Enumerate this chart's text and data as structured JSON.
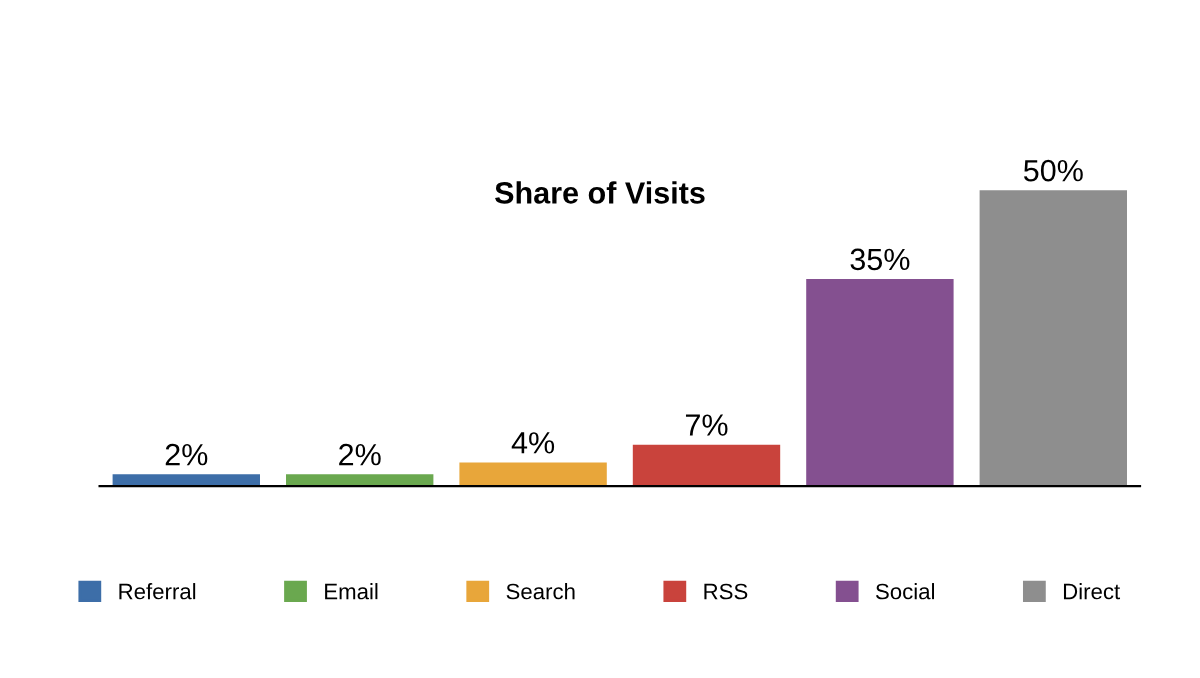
{
  "chart_data": {
    "type": "bar",
    "title": "Share of Visits",
    "categories": [
      null,
      null,
      null,
      null,
      null,
      null
    ],
    "series": [
      {
        "name": "Referral",
        "color": "#3d6ea8",
        "values": [
          2,
          null,
          null,
          null,
          null,
          null
        ],
        "value_labels": [
          "2%",
          null,
          null,
          null,
          null,
          null
        ]
      },
      {
        "name": "Email",
        "color": "#6aa84f",
        "values": [
          null,
          2,
          null,
          null,
          null,
          null
        ],
        "value_labels": [
          null,
          "2%",
          null,
          null,
          null,
          null
        ]
      },
      {
        "name": "Search",
        "color": "#e8a63a",
        "values": [
          null,
          null,
          4,
          null,
          null,
          null
        ],
        "value_labels": [
          null,
          null,
          "4%",
          null,
          null,
          null
        ]
      },
      {
        "name": "RSS",
        "color": "#c9433c",
        "values": [
          null,
          null,
          null,
          7,
          null,
          null
        ],
        "value_labels": [
          null,
          null,
          null,
          "7%",
          null,
          null
        ]
      },
      {
        "name": "Social",
        "color": "#845090",
        "values": [
          null,
          null,
          null,
          null,
          35,
          null
        ],
        "value_labels": [
          null,
          null,
          null,
          null,
          "35%",
          null
        ]
      },
      {
        "name": "Direct",
        "color": "#8e8e8e",
        "values": [
          null,
          null,
          null,
          null,
          null,
          50
        ],
        "value_labels": [
          null,
          null,
          null,
          null,
          null,
          "50%"
        ]
      }
    ],
    "stacked": true,
    "legend": "bottom",
    "grid": false
  }
}
